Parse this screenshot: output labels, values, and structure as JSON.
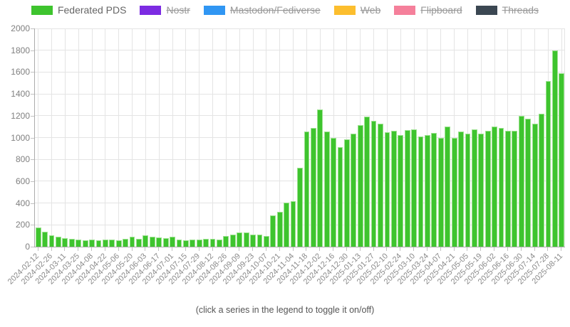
{
  "legend": {
    "items": [
      {
        "label": "Federated PDS",
        "color": "#3ec42e",
        "active": true
      },
      {
        "label": "Nostr",
        "color": "#7c2be2",
        "active": false
      },
      {
        "label": "Mastodon/Fediverse",
        "color": "#3096f3",
        "active": false
      },
      {
        "label": "Web",
        "color": "#fcbe2e",
        "active": false
      },
      {
        "label": "Flipboard",
        "color": "#f5809b",
        "active": false
      },
      {
        "label": "Threads",
        "color": "#3b4752",
        "active": false
      }
    ]
  },
  "footer": {
    "hint": "(click a series in the legend to toggle it on/off)"
  },
  "chart_data": {
    "type": "bar",
    "title": "",
    "xlabel": "",
    "ylabel": "",
    "ylim": [
      0,
      2000
    ],
    "ytick_step": 200,
    "grid": true,
    "legend_position": "top",
    "x_tick_every": 2,
    "x": [
      "2024-02-12",
      "2024-02-19",
      "2024-02-26",
      "2024-03-04",
      "2024-03-11",
      "2024-03-18",
      "2024-03-25",
      "2024-04-01",
      "2024-04-08",
      "2024-04-15",
      "2024-04-22",
      "2024-04-29",
      "2024-05-06",
      "2024-05-13",
      "2024-05-20",
      "2024-05-27",
      "2024-06-03",
      "2024-06-10",
      "2024-06-17",
      "2024-06-24",
      "2024-07-01",
      "2024-07-08",
      "2024-07-15",
      "2024-07-22",
      "2024-07-29",
      "2024-08-05",
      "2024-08-12",
      "2024-08-19",
      "2024-08-26",
      "2024-09-02",
      "2024-09-09",
      "2024-09-16",
      "2024-09-23",
      "2024-09-30",
      "2024-10-07",
      "2024-10-14",
      "2024-10-21",
      "2024-10-28",
      "2024-11-04",
      "2024-11-11",
      "2024-11-18",
      "2024-11-25",
      "2024-12-02",
      "2024-12-09",
      "2024-12-16",
      "2024-12-23",
      "2024-12-30",
      "2025-01-06",
      "2025-01-13",
      "2025-01-20",
      "2025-01-27",
      "2025-02-03",
      "2025-02-10",
      "2025-02-17",
      "2025-02-24",
      "2025-03-03",
      "2025-03-10",
      "2025-03-17",
      "2025-03-24",
      "2025-03-31",
      "2025-04-07",
      "2025-04-14",
      "2025-04-21",
      "2025-04-28",
      "2025-05-05",
      "2025-05-12",
      "2025-05-19",
      "2025-05-26",
      "2025-06-02",
      "2025-06-09",
      "2025-06-16",
      "2025-06-23",
      "2025-06-30",
      "2025-07-07",
      "2025-07-14",
      "2025-07-21",
      "2025-07-28",
      "2025-08-04",
      "2025-08-11"
    ],
    "series": [
      {
        "name": "Federated PDS",
        "color": "#3ec42e",
        "visible": true,
        "values": [
          175,
          140,
          105,
          90,
          78,
          70,
          63,
          60,
          62,
          58,
          62,
          65,
          60,
          72,
          90,
          74,
          105,
          91,
          82,
          76,
          89,
          65,
          60,
          62,
          63,
          72,
          75,
          65,
          95,
          110,
          130,
          128,
          110,
          110,
          100,
          290,
          320,
          405,
          415,
          720,
          1055,
          1090,
          1260,
          1055,
          1000,
          910,
          985,
          1035,
          1115,
          1190,
          1150,
          1130,
          1050,
          1065,
          1025,
          1070,
          1075,
          1010,
          1020,
          1045,
          1000,
          1100,
          1000,
          1055,
          1035,
          1075,
          1035,
          1065,
          1100,
          1090,
          1060,
          1065,
          1200,
          1170,
          1130,
          1220,
          1520,
          1800,
          1590
        ]
      }
    ],
    "hidden_series": [
      "Nostr",
      "Mastodon/Fediverse",
      "Web",
      "Flipboard",
      "Threads"
    ]
  }
}
